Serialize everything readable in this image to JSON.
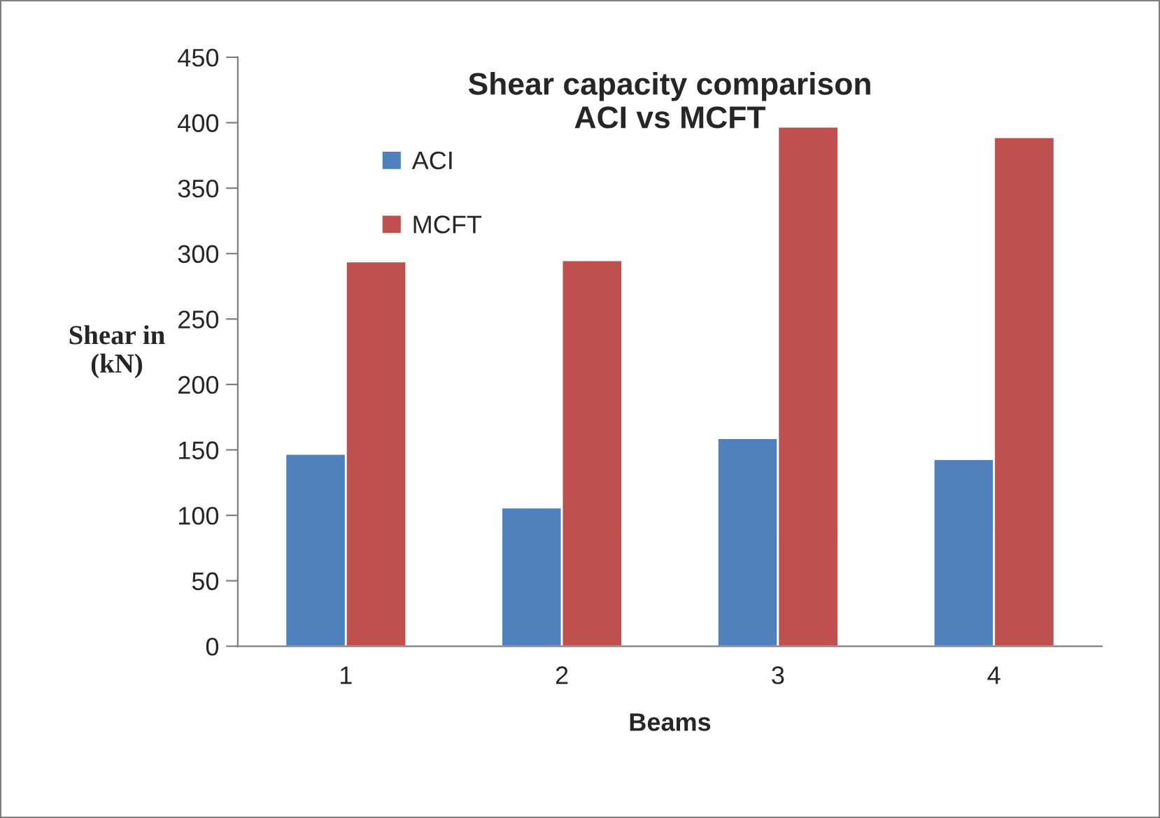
{
  "chart_data": {
    "type": "bar",
    "title": "Shear capacity comparison\nACI vs MCFT",
    "xlabel": "Beams",
    "ylabel": "Shear in\n(kN)",
    "categories": [
      "1",
      "2",
      "3",
      "4"
    ],
    "series": [
      {
        "name": "ACI",
        "color": "#4f81bd",
        "values": [
          147,
          106,
          159,
          143
        ]
      },
      {
        "name": "MCFT",
        "color": "#c0504d",
        "values": [
          294,
          295,
          397,
          389
        ]
      }
    ],
    "ylim": [
      0,
      450
    ],
    "yticks": [
      0,
      50,
      100,
      150,
      200,
      250,
      300,
      350,
      400,
      450
    ],
    "grid": false,
    "legend": "top left"
  }
}
